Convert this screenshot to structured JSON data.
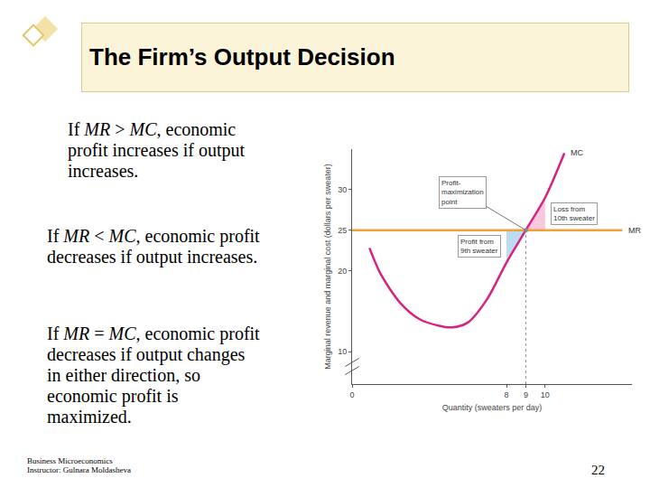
{
  "slide": {
    "title": "The Firm’s Output Decision",
    "paragraphs": [
      [
        [
          "If ",
          {
            "italic": "MR"
          },
          " > ",
          {
            "italic": "MC"
          },
          ", economic"
        ],
        [
          "profit increases if output"
        ],
        [
          "increases."
        ]
      ],
      [
        [
          "If ",
          {
            "italic": "MR"
          },
          " < ",
          {
            "italic": "MC"
          },
          ", economic profit"
        ],
        [
          "decreases if output increases."
        ]
      ],
      [
        [
          "If ",
          {
            "italic": "MR"
          },
          " = ",
          {
            "italic": "MC"
          },
          ", economic profit"
        ],
        [
          "decreases if output changes"
        ],
        [
          "in either direction, so"
        ],
        [
          "economic profit is"
        ],
        [
          "maximized."
        ]
      ]
    ],
    "footer": [
      "Business Microeconomics",
      "Instructor: Gulnara Moldasheva"
    ],
    "page": 22
  },
  "chart_data": {
    "type": "line",
    "x_label": "Quantity (sweaters per day)",
    "y_label": "Marginal revenue and marginal cost (dollars per sweater)",
    "xlim": [
      0,
      14.5
    ],
    "xticks": [
      0,
      8,
      9,
      10
    ],
    "ylim": [
      6,
      35
    ],
    "yticks": [
      10,
      20,
      25,
      30
    ],
    "grid": false,
    "series": [
      {
        "name": "MC",
        "color": "#d6237f",
        "x": [
          0.9,
          1.5,
          2.5,
          3.5,
          4.5,
          5.2,
          6,
          7,
          8,
          9,
          10,
          11
        ],
        "values": [
          22.8,
          19.5,
          16.0,
          14.0,
          13.2,
          13.0,
          13.6,
          16.5,
          21,
          25,
          29,
          34.5
        ]
      },
      {
        "name": "MR",
        "color": "#f0a23a",
        "x": [
          0,
          14
        ],
        "values": [
          25,
          25
        ]
      }
    ],
    "areas": [
      {
        "label": [
          "Profit from",
          "9th sweater"
        ],
        "color": "#bcdcf2",
        "x": [
          8,
          9
        ]
      },
      {
        "label": [
          "Loss from",
          "10th sweater"
        ],
        "color": "#f8c8de",
        "x": [
          9,
          10
        ]
      }
    ],
    "point": {
      "label": [
        "Profit-",
        "maximization",
        "point"
      ],
      "x": 9,
      "y": 25
    }
  }
}
